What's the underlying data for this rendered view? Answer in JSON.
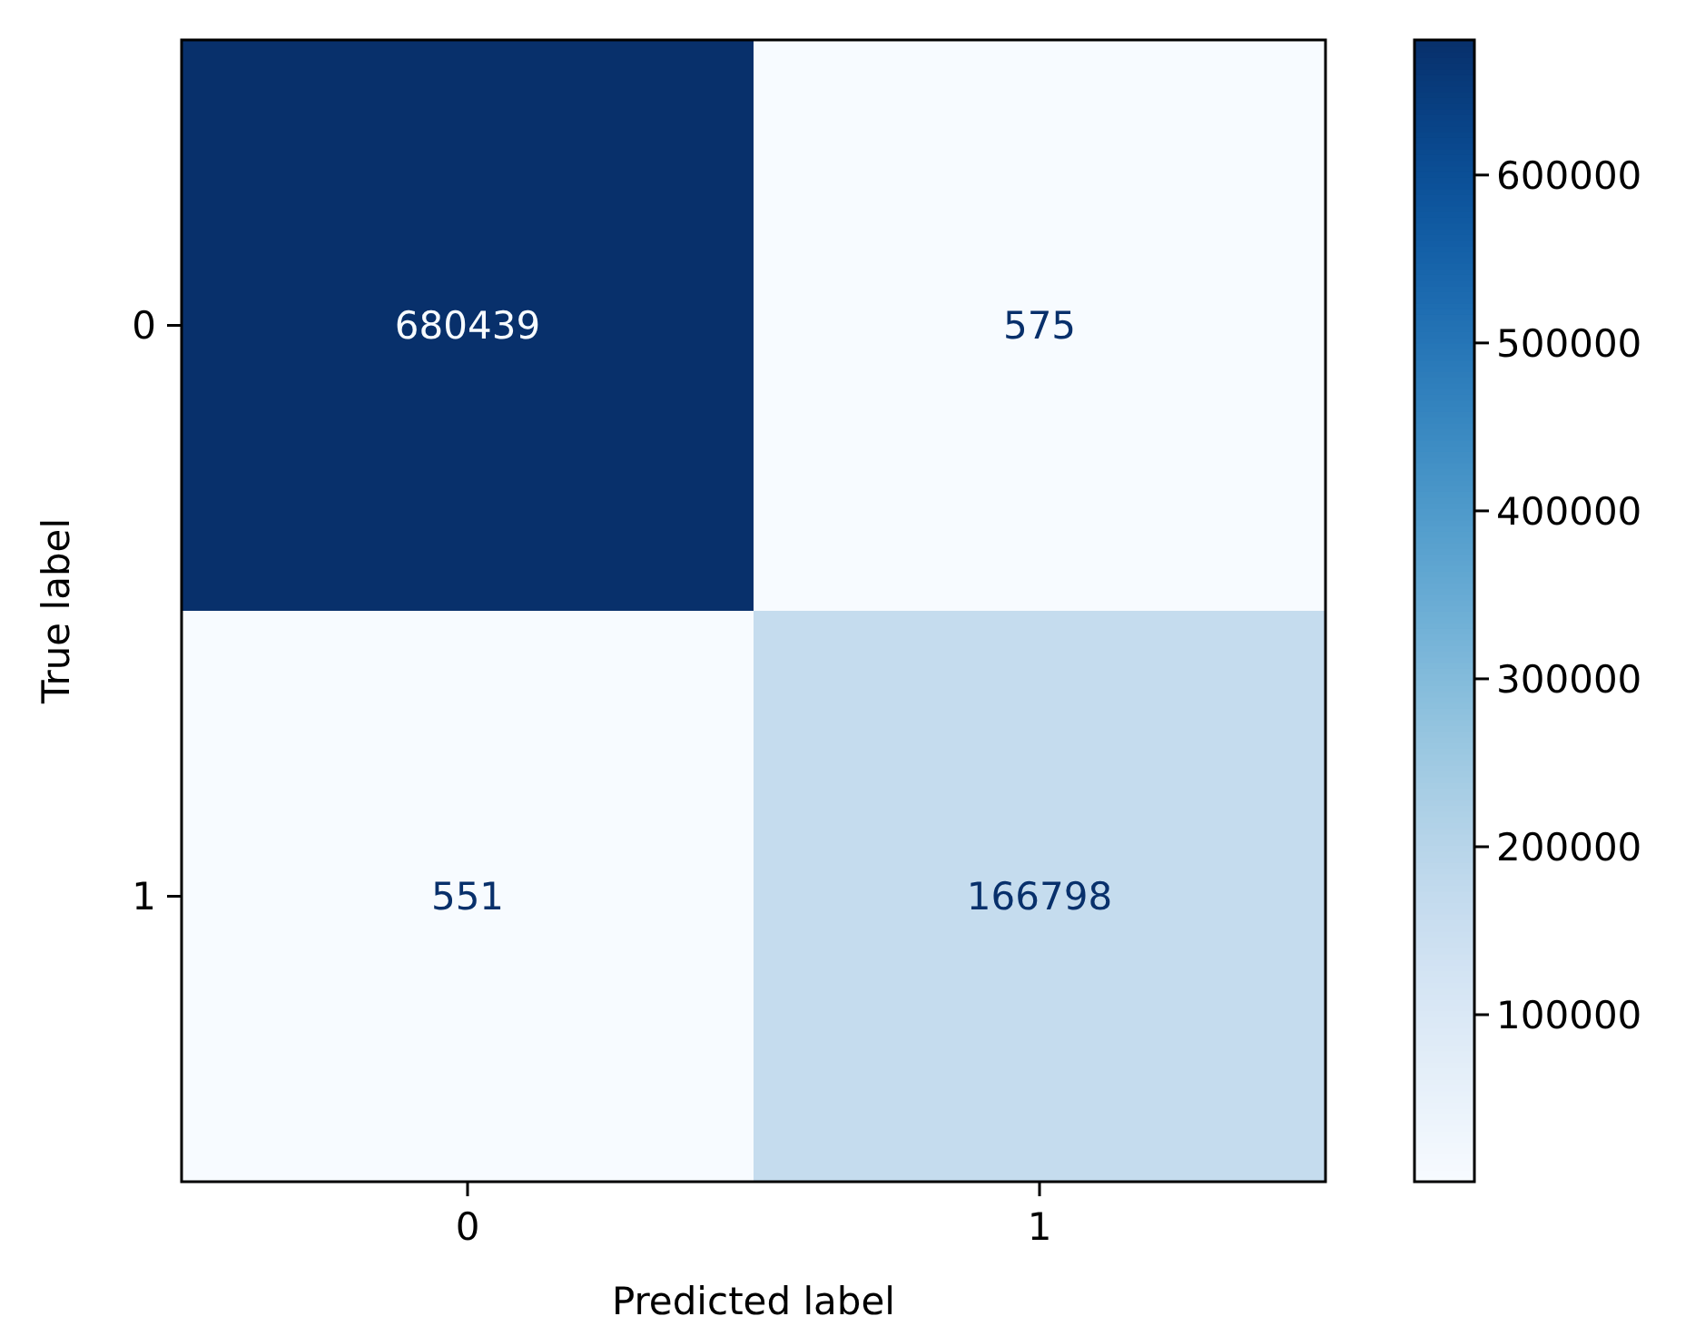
{
  "chart_data": {
    "type": "heatmap",
    "xlabel": "Predicted label",
    "ylabel": "True label",
    "categories": [
      "0",
      "1"
    ],
    "y_categories": [
      "0",
      "1"
    ],
    "cells": [
      [
        680439,
        575
      ],
      [
        551,
        166798
      ]
    ],
    "data_labels": true,
    "clim": [
      551,
      680439
    ],
    "cticks": [
      100000,
      200000,
      300000,
      400000,
      500000,
      600000
    ]
  }
}
